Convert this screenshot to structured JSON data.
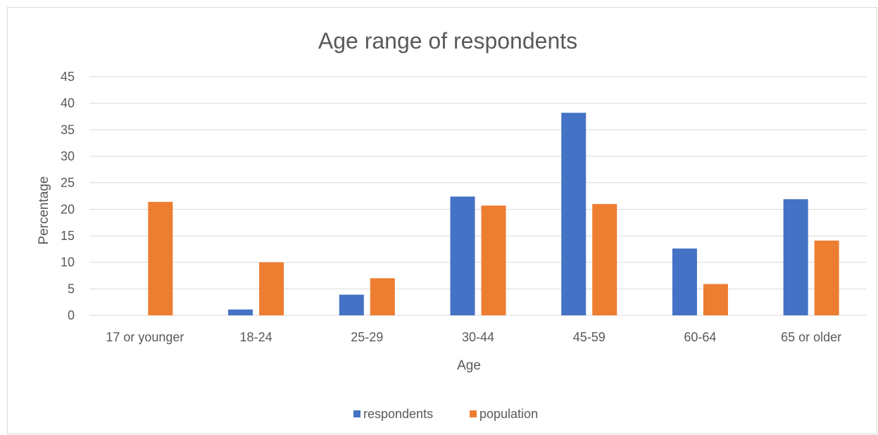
{
  "chart_data": {
    "type": "bar",
    "title": "Age range of respondents",
    "xlabel": "Age",
    "ylabel": "Percentage",
    "ylim": [
      0,
      45
    ],
    "yticks": [
      0,
      5,
      10,
      15,
      20,
      25,
      30,
      35,
      40,
      45
    ],
    "grid": true,
    "legend_position": "bottom",
    "categories": [
      "17 or younger",
      "18-24",
      "25-29",
      "30-44",
      "45-59",
      "60-64",
      "65 or older"
    ],
    "series": [
      {
        "name": "respondents",
        "color": "#4472c4",
        "values": [
          0,
          1.1,
          3.9,
          22.4,
          38.2,
          12.6,
          21.9
        ]
      },
      {
        "name": "population",
        "color": "#ed7d31",
        "values": [
          21.4,
          10.0,
          7.0,
          20.7,
          21.0,
          5.9,
          14.1
        ]
      }
    ]
  }
}
